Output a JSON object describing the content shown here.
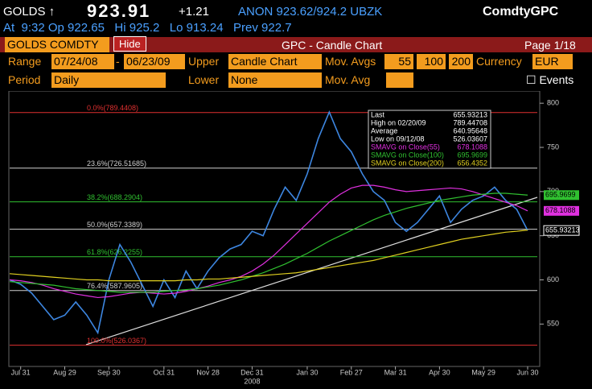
{
  "header": {
    "ticker": "GOLDS ↑",
    "price": "923.91",
    "change": "+1.21",
    "quote": "ANON 923.62/924.2 UBZK",
    "func": "ComdtyGPC",
    "line2": "At  9:32 Op 922.65   Hi 925.2   Lo 913.24   Prev 922.7"
  },
  "toolbar": {
    "security": "GOLDS COMDTY",
    "hide": "Hide",
    "title": "GPC - Candle Chart",
    "page": "Page 1/18"
  },
  "controls": {
    "range_label": "Range",
    "start": "07/24/08",
    "dash": "-",
    "end": "06/23/09",
    "upper_label": "Upper",
    "upper": "Candle Chart",
    "mavg_label": "Mov. Avgs",
    "mavgs": [
      "55",
      "100",
      "200"
    ],
    "currency_label": "Currency",
    "currency": "EUR",
    "period_label": "Period",
    "period": "Daily",
    "lower_label": "Lower",
    "lower": "None",
    "mavg2_label": "Mov. Avg",
    "events": "☐ Events"
  },
  "chart_data": {
    "type": "line",
    "categories": [
      null,
      "Jul 31",
      null,
      null,
      null,
      "Aug 29",
      null,
      null,
      null,
      "Sep 30",
      null,
      null,
      null,
      null,
      "Oct 31",
      null,
      null,
      null,
      "Nov 28",
      null,
      null,
      null,
      "Dec 31",
      null,
      null,
      null,
      null,
      "Jan 30",
      null,
      null,
      null,
      "Feb 27",
      null,
      null,
      null,
      "Mar 31",
      null,
      null,
      null,
      "Apr 30",
      null,
      null,
      null,
      "May 29",
      null,
      null,
      null,
      "Jun 30"
    ],
    "year_label": "2008",
    "series": [
      {
        "name": "Close",
        "color": "#3d86e0",
        "values": [
          600,
          595,
          585,
          570,
          555,
          560,
          575,
          560,
          540,
          600,
          640,
          620,
          595,
          570,
          600,
          580,
          610,
          590,
          610,
          625,
          635,
          640,
          655,
          650,
          680,
          705,
          690,
          720,
          760,
          790,
          760,
          745,
          720,
          700,
          690,
          665,
          655,
          665,
          680,
          695,
          665,
          680,
          690,
          695,
          705,
          690,
          680,
          655.93
        ]
      },
      {
        "name": "SMAVG on Close(55)",
        "color": "#e030e0",
        "values": [
          600,
          599,
          597,
          594,
          590,
          587,
          584,
          582,
          580,
          581,
          583,
          585,
          586,
          585,
          584,
          585,
          587,
          590,
          593,
          597,
          600,
          604,
          610,
          618,
          628,
          640,
          652,
          664,
          676,
          688,
          697,
          704,
          707,
          707,
          705,
          702,
          700,
          701,
          702,
          703,
          704,
          703,
          700,
          696,
          692,
          688,
          684,
          678.11
        ]
      },
      {
        "name": "SMAVG on Close(100)",
        "color": "#30c030",
        "values": [
          598,
          597,
          596,
          595,
          594,
          592,
          590,
          589,
          588,
          587,
          586,
          586,
          586,
          586,
          587,
          588,
          589,
          590,
          592,
          594,
          597,
          600,
          604,
          608,
          613,
          618,
          624,
          630,
          637,
          644,
          650,
          656,
          662,
          668,
          673,
          677,
          681,
          684,
          687,
          690,
          692,
          694,
          696,
          697,
          698,
          698,
          697,
          695.97
        ]
      },
      {
        "name": "SMAVG on Close(200)",
        "color": "#e0d020",
        "values": [
          607,
          606,
          605,
          604,
          603,
          602,
          601,
          600,
          600,
          599,
          599,
          599,
          599,
          599,
          599,
          599,
          600,
          600,
          601,
          601,
          602,
          603,
          604,
          605,
          606,
          607,
          608,
          610,
          612,
          614,
          616,
          618,
          620,
          622,
          625,
          628,
          631,
          634,
          637,
          640,
          643,
          646,
          648,
          650,
          652,
          654,
          655,
          656.44
        ]
      }
    ],
    "ylim": [
      502,
      812
    ],
    "yticks": [
      550,
      600,
      650,
      700,
      750,
      800
    ],
    "fib": [
      {
        "value": 789.4408,
        "label": "0.0%(789.4408)",
        "color": "#e03030"
      },
      {
        "value": 726.51685,
        "label": "23.6%(726.51685)",
        "color": "#d0d0d0"
      },
      {
        "value": 688.2904,
        "label": "38.2%(688.2904)",
        "color": "#30c030"
      },
      {
        "value": 657.3389,
        "label": "50.0%(657.3389)",
        "color": "#d0d0d0"
      },
      {
        "value": 626.2255,
        "label": "61.8%(626.2255)",
        "color": "#30c030"
      },
      {
        "value": 587.9605,
        "label": "76.4%(587.9605)",
        "color": "#d0d0d0"
      },
      {
        "value": 526.0367,
        "label": "100.0%(526.0367)",
        "color": "#e03030"
      }
    ],
    "right_labels": [
      {
        "value": 695.9699,
        "label": "695.9699",
        "color": "#30c030"
      },
      {
        "value": 678.1088,
        "label": "678.1088",
        "color": "#e030e0"
      },
      {
        "value": 655.93213,
        "label": "655.93213",
        "color": "#ffffff"
      }
    ],
    "legend": [
      [
        "Last",
        "655.93213"
      ],
      [
        "High on 02/20/09",
        "789.44708"
      ],
      [
        "Average",
        "640.95648"
      ],
      [
        "Low on 09/12/08",
        "526.03607"
      ],
      [
        "SMAVG on Close(55)",
        "678.1088"
      ],
      [
        "SMAVG on Close(100)",
        "695.9699"
      ],
      [
        "SMAVG on Close(200)",
        "656.4352"
      ]
    ]
  }
}
